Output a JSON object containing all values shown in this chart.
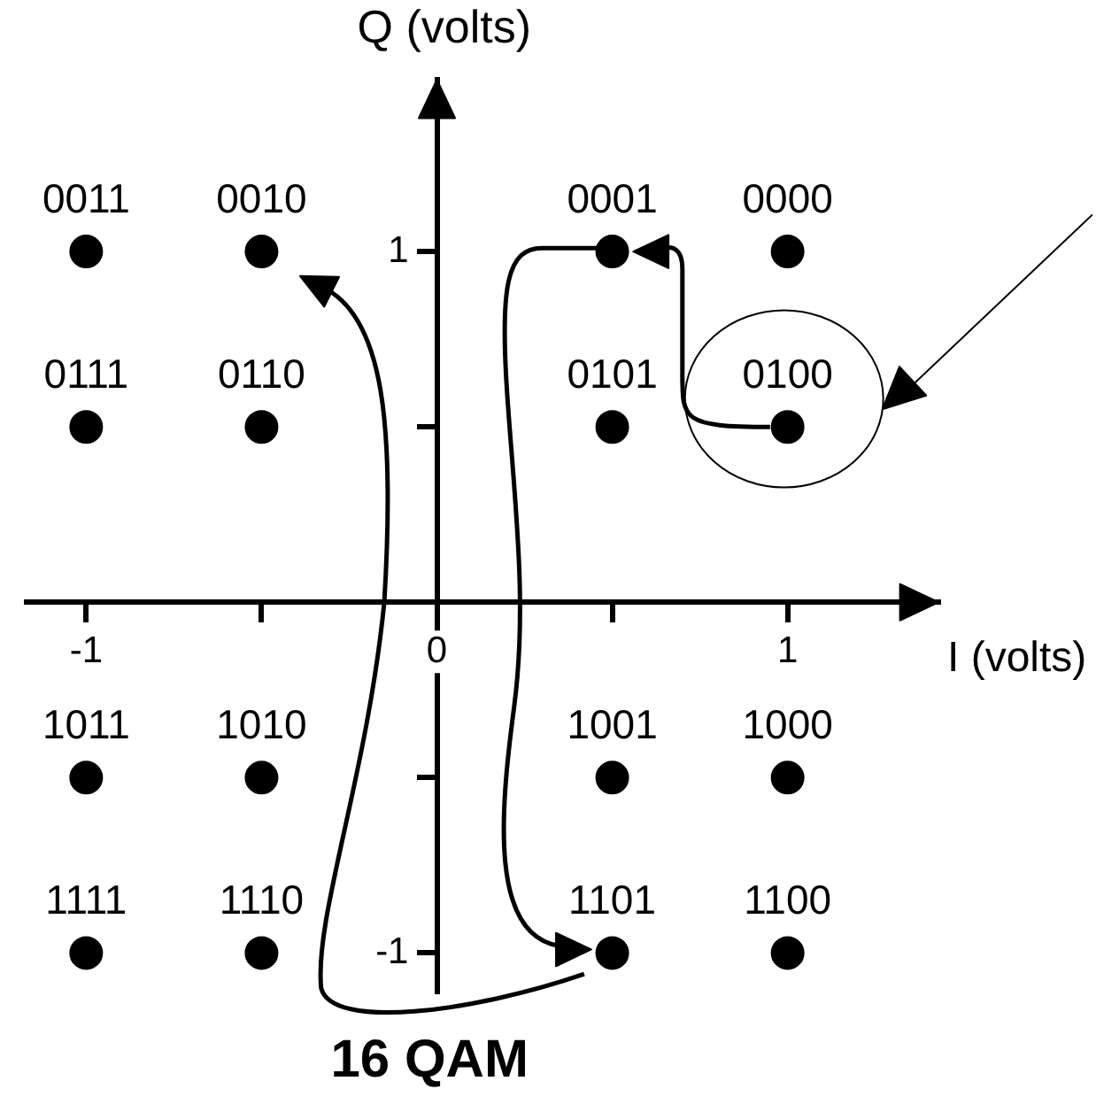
{
  "chart_data": {
    "type": "scatter",
    "title": "16 QAM",
    "xlabel": "I (volts)",
    "ylabel": "Q (volts)",
    "series": [
      {
        "color": "#000000",
        "x": [
          -1,
          -0.5,
          0.5,
          1,
          -1,
          -0.5,
          0.5,
          1,
          -1,
          -0.5,
          0.5,
          1,
          -1,
          -0.5,
          0.5,
          1
        ],
        "values": [
          1,
          1,
          1,
          1,
          0.5,
          0.5,
          0.5,
          0.5,
          -0.5,
          -0.5,
          -0.5,
          -0.5,
          -1,
          -1,
          -1,
          -1
        ]
      }
    ],
    "xlim": [
      -1.17,
      1.43
    ],
    "ylim": [
      -1.11,
      1.49
    ],
    "xticks": [
      -1,
      {
        "value": -0.5,
        "label": null
      },
      0,
      {
        "value": 0.5,
        "label": null
      },
      1
    ],
    "yticks": [
      -1,
      {
        "value": -0.5,
        "label": null
      },
      {
        "value": 0.5,
        "label": null
      },
      1
    ],
    "marker": "circle",
    "grid": false,
    "annotations": [
      {
        "text": "0011",
        "x": -1,
        "y": 1
      },
      {
        "text": "0010",
        "x": -0.5,
        "y": 1
      },
      {
        "text": "0001",
        "x": 0.5,
        "y": 1
      },
      {
        "text": "0000",
        "x": 1,
        "y": 1
      },
      {
        "text": "0111",
        "x": -1,
        "y": 0.5
      },
      {
        "text": "0110",
        "x": -0.5,
        "y": 0.5
      },
      {
        "text": "0101",
        "x": 0.5,
        "y": 0.5
      },
      {
        "text": "0100",
        "x": 1,
        "y": 0.5
      },
      {
        "text": "1011",
        "x": -1,
        "y": -0.5
      },
      {
        "text": "1010",
        "x": -0.5,
        "y": -0.5
      },
      {
        "text": "1001",
        "x": 0.5,
        "y": -0.5
      },
      {
        "text": "1000",
        "x": 1,
        "y": -0.5
      },
      {
        "text": "1111",
        "x": -1,
        "y": -1
      },
      {
        "text": "1110",
        "x": -0.5,
        "y": -1
      },
      {
        "text": "1101",
        "x": 0.5,
        "y": -1
      },
      {
        "text": "1100",
        "x": 1,
        "y": -1
      }
    ]
  }
}
